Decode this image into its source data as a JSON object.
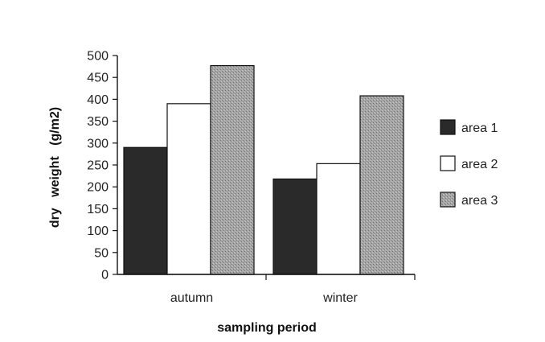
{
  "chart_data": {
    "type": "bar",
    "title": "",
    "xlabel": "sampling period",
    "ylabel": "dry   weight   (g/m2)",
    "categories": [
      "autumn",
      "winter"
    ],
    "ylim": [
      0,
      500
    ],
    "yticks": [
      0,
      50,
      100,
      150,
      200,
      250,
      300,
      350,
      400,
      450,
      500
    ],
    "grid": false,
    "legend_position": "right",
    "series": [
      {
        "name": "area 1",
        "values": [
          290,
          218
        ],
        "color": "#2a2a2a"
      },
      {
        "name": "area 2",
        "values": [
          390,
          253
        ],
        "color": "#ffffff"
      },
      {
        "name": "area 3",
        "values": [
          477,
          408
        ],
        "color": "#9a9a9a"
      }
    ]
  }
}
